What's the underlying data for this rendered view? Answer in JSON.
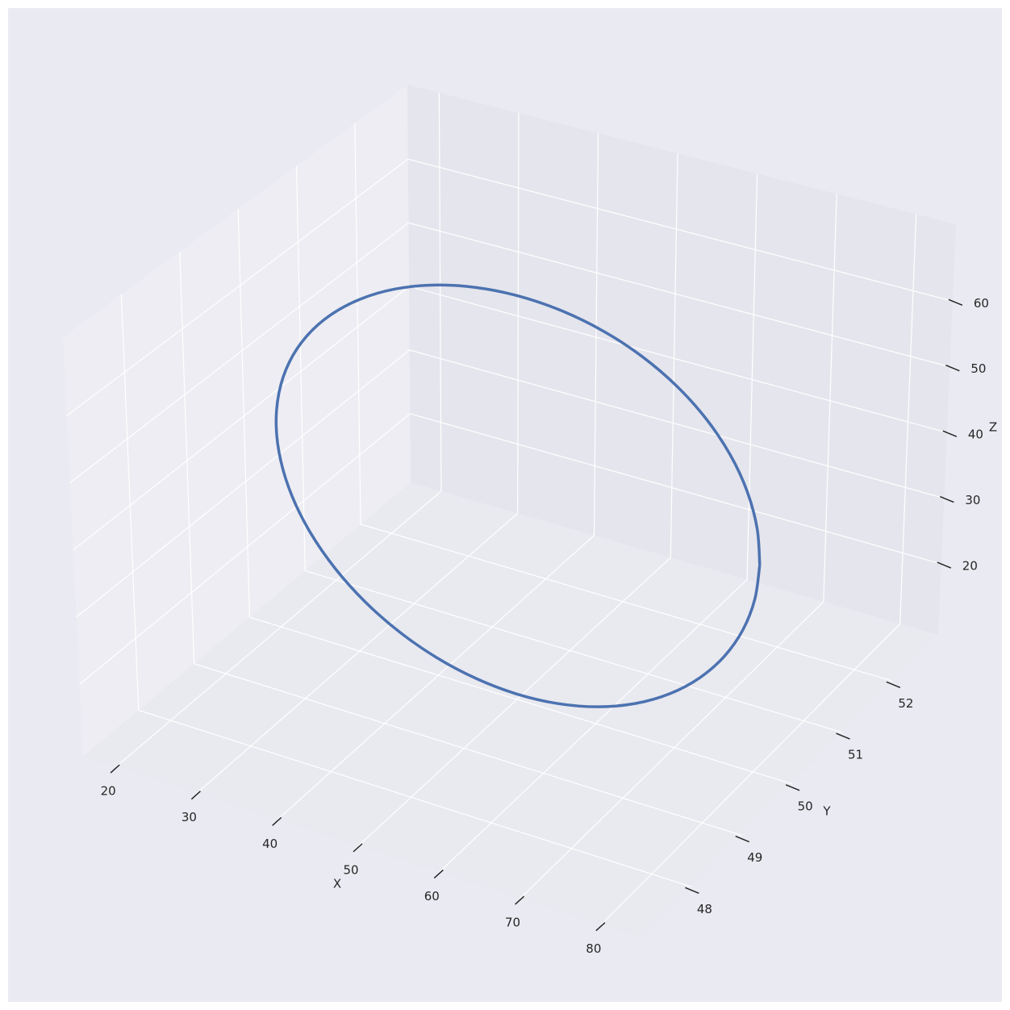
{
  "chart_data": {
    "type": "line3d",
    "xlabel": "X",
    "ylabel": "Y",
    "zlabel": "Z",
    "xlim": [
      16,
      85
    ],
    "ylim": [
      47,
      52.9
    ],
    "zlim": [
      9.2,
      71.7
    ],
    "xticks": [
      20,
      30,
      40,
      50,
      60,
      70,
      80
    ],
    "yticks": [
      48,
      49,
      50,
      51,
      52
    ],
    "zticks": [
      20,
      30,
      40,
      50,
      60
    ],
    "grid": true,
    "series": [
      {
        "color": "#4c72b0",
        "x": [
          80,
          79.54,
          78.19,
          75.98,
          72.98,
          69.28,
          65,
          60.26,
          55.21,
          50,
          44.79,
          39.74,
          35,
          30.72,
          27.02,
          24.02,
          21.81,
          20.46,
          20,
          20.46,
          21.81,
          24.02,
          27.02,
          30.72,
          35,
          39.74,
          44.79,
          50,
          55.21,
          60.26,
          65,
          69.28,
          72.98,
          75.98,
          78.19,
          79.54,
          80
        ],
        "y": [
          50,
          50,
          50,
          50,
          50,
          50,
          50,
          50,
          50,
          50,
          50,
          50,
          50,
          50,
          50,
          50,
          50,
          50,
          50,
          50,
          50,
          50,
          50,
          50,
          50,
          50,
          50,
          50,
          50,
          50,
          50,
          50,
          50,
          50,
          50,
          50,
          50
        ],
        "z": [
          40,
          45.21,
          50.26,
          55,
          59.28,
          62.98,
          65.98,
          68.19,
          69.54,
          70,
          69.54,
          68.19,
          65.98,
          62.98,
          59.28,
          55,
          50.26,
          45.21,
          40,
          34.79,
          29.74,
          25,
          20.72,
          17.02,
          14.02,
          11.81,
          10.46,
          10,
          10.46,
          11.81,
          14.02,
          17.02,
          20.72,
          25,
          29.74,
          34.79,
          40
        ]
      }
    ]
  }
}
